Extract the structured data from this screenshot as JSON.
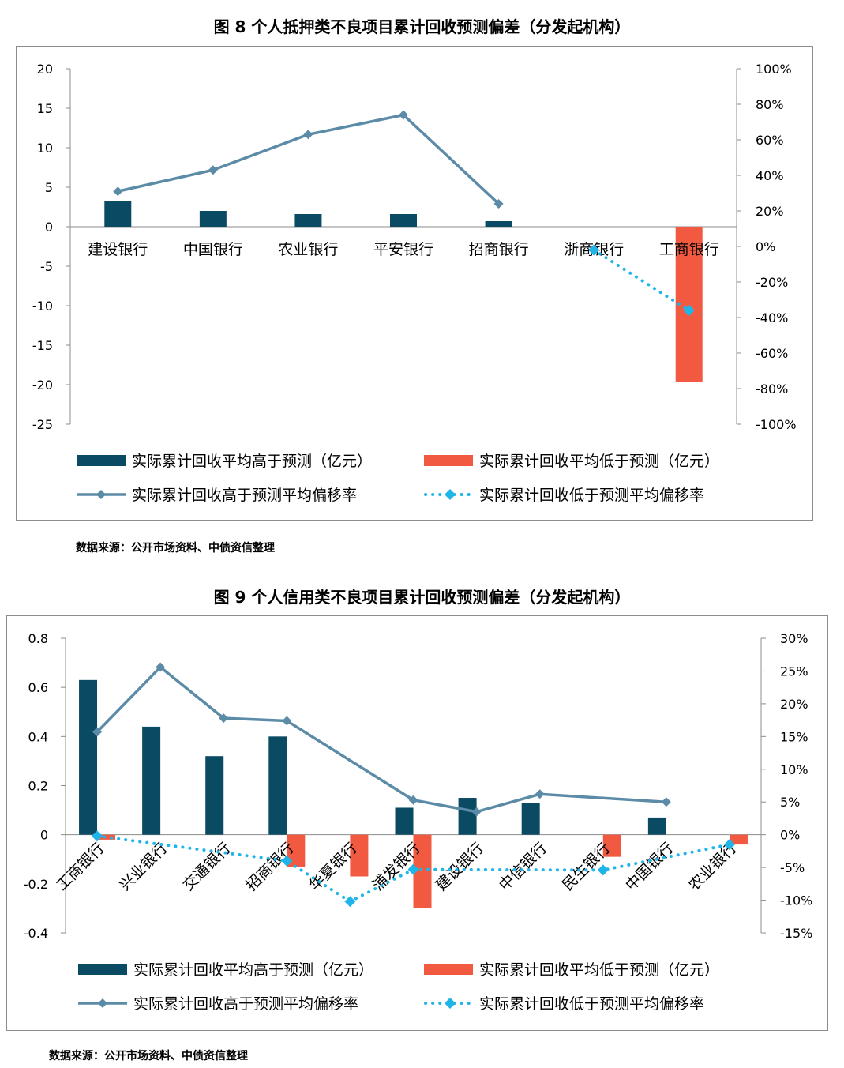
{
  "charts": [
    {
      "title": "图 8  个人抵押类不良项目累计回收预测偏差（分发起机构）",
      "source": "数据来源：公开市场资料、中债资信整理"
    },
    {
      "title": "图 9  个人信用类不良项目累计回收预测偏差（分发起机构）",
      "source": "数据来源：公开市场资料、中债资信整理"
    }
  ],
  "colors": {
    "bar_pos": "#0b4a63",
    "bar_neg": "#f15a40",
    "line_pos": "#5b8ba7",
    "line_neg": "#1fb5e8"
  },
  "chart_data": [
    {
      "type": "bar",
      "categories": [
        "建设银行",
        "中国银行",
        "农业银行",
        "平安银行",
        "招商银行",
        "浙商银行",
        "工商银行"
      ],
      "series": [
        {
          "name": "实际累计回收平均高于预测（亿元）",
          "axis": "left",
          "kind": "bar",
          "values": [
            3.3,
            2.0,
            1.6,
            1.6,
            0.7,
            null,
            null
          ]
        },
        {
          "name": "实际累计回收平均低于预测（亿元）",
          "axis": "left",
          "kind": "bar",
          "values": [
            null,
            null,
            null,
            null,
            null,
            null,
            -19.7
          ]
        },
        {
          "name": "实际累计回收高于预测平均偏移率",
          "axis": "right",
          "kind": "line",
          "values": [
            0.31,
            0.43,
            0.63,
            0.74,
            0.24,
            null,
            null
          ]
        },
        {
          "name": "实际累计回收低于预测平均偏移率",
          "axis": "right",
          "kind": "line-dotted",
          "values": [
            null,
            null,
            null,
            null,
            null,
            -0.02,
            -0.36
          ]
        }
      ],
      "ylim": [
        -25,
        20
      ],
      "yticks": [
        "20",
        "15",
        "10",
        "5",
        "0",
        "-5",
        "-10",
        "-15",
        "-20",
        "-25"
      ],
      "y2lim": [
        -1,
        1
      ],
      "y2ticks": [
        "100%",
        "80%",
        "60%",
        "40%",
        "20%",
        "0%",
        "-20%",
        "-40%",
        "-60%",
        "-80%",
        "-100%"
      ],
      "category_label_style": "horizontal"
    },
    {
      "type": "bar",
      "categories": [
        "工商银行",
        "兴业银行",
        "交通银行",
        "招商银行",
        "华夏银行",
        "浦发银行",
        "建设银行",
        "中信银行",
        "民生银行",
        "中国银行",
        "农业银行"
      ],
      "series": [
        {
          "name": "实际累计回收平均高于预测（亿元）",
          "axis": "left",
          "kind": "bar",
          "values": [
            0.63,
            0.44,
            0.32,
            0.4,
            null,
            0.11,
            0.15,
            0.13,
            null,
            0.07,
            null
          ]
        },
        {
          "name": "实际累计回收平均低于预测（亿元）",
          "axis": "left",
          "kind": "bar",
          "values": [
            -0.02,
            null,
            null,
            -0.13,
            -0.17,
            -0.3,
            null,
            null,
            -0.09,
            null,
            -0.04
          ]
        },
        {
          "name": "实际累计回收高于预测平均偏移率",
          "axis": "right",
          "kind": "line",
          "values": [
            0.157,
            0.256,
            0.178,
            0.174,
            null,
            0.053,
            0.035,
            0.062,
            null,
            0.05,
            null
          ]
        },
        {
          "name": "实际累计回收低于预测平均偏移率",
          "axis": "right",
          "kind": "line-dotted",
          "values": [
            -0.002,
            null,
            null,
            -0.04,
            -0.102,
            -0.053,
            null,
            null,
            -0.054,
            null,
            -0.015
          ]
        }
      ],
      "ylim": [
        -0.4,
        0.8
      ],
      "yticks": [
        "0.8",
        "0.6",
        "0.4",
        "0.2",
        "0",
        "-0.2",
        "-0.4"
      ],
      "y2lim": [
        -0.15,
        0.3
      ],
      "y2ticks": [
        "30%",
        "25%",
        "20%",
        "15%",
        "10%",
        "5%",
        "0%",
        "-5%",
        "-10%",
        "-15%"
      ],
      "category_label_style": "rotated"
    }
  ]
}
